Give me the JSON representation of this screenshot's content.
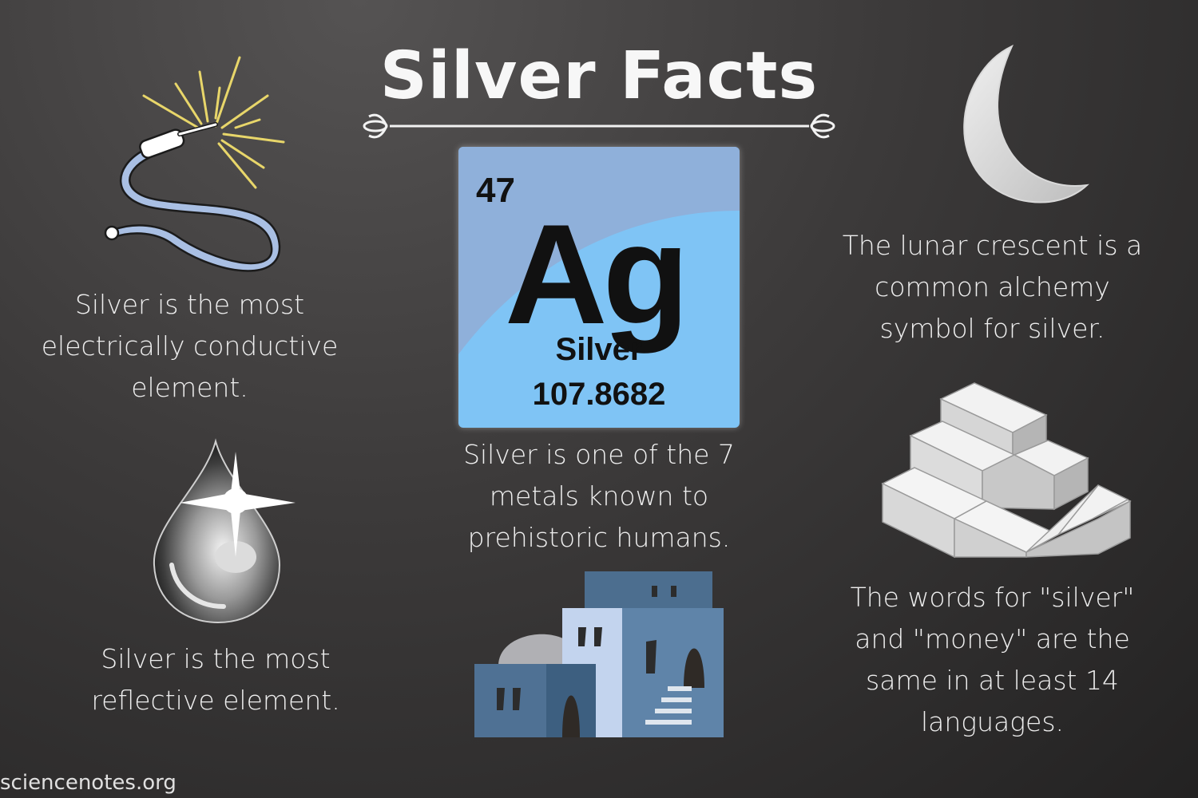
{
  "title": "Silver Facts",
  "element_tile": {
    "atomic_number": "47",
    "symbol": "Ag",
    "name": "Silver",
    "atomic_mass": "107.8682",
    "colors": {
      "tile_top": "#8fb3dc",
      "tile_bottom": "#7fc4f5"
    }
  },
  "facts": [
    "Silver is the most electrically conductive element.",
    "Silver is the most reflective element.",
    "Silver is one of the 7 metals known to prehistoric humans.",
    "The lunar crescent is a common alchemy symbol for silver.",
    "The words for \"silver\" and \"money\" are the same in at least 14 languages."
  ],
  "icons": [
    "electric-wire-icon",
    "silver-droplet-icon",
    "ancient-buildings-icon",
    "crescent-moon-icon",
    "silver-bars-icon"
  ],
  "credit": "sciencenotes.org"
}
